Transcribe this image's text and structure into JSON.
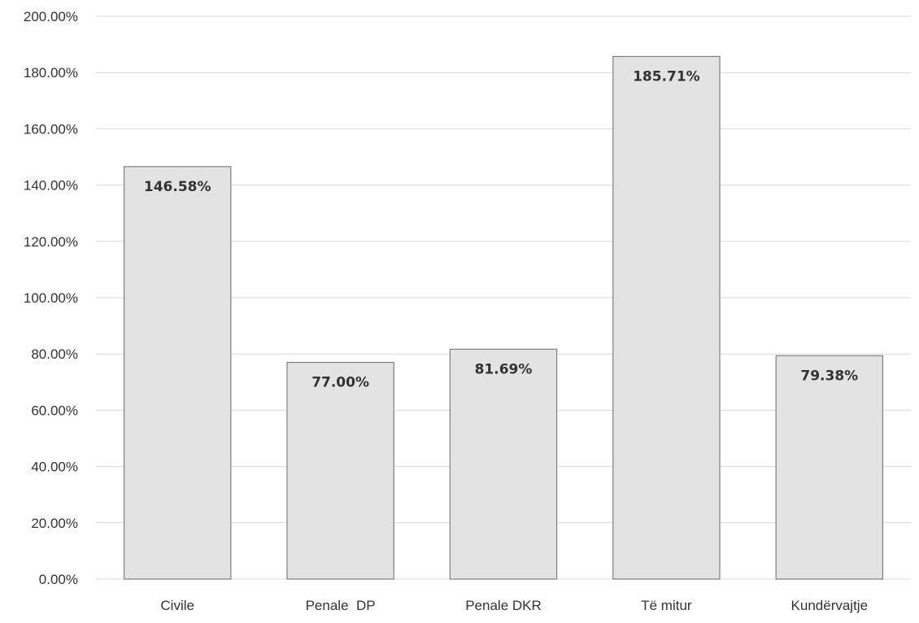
{
  "chart_data": {
    "type": "bar",
    "categories": [
      "Civile",
      "Penale  DP",
      "Penale DKR",
      "Të mitur",
      "Kundërvajtje"
    ],
    "values": [
      146.58,
      77.0,
      81.69,
      185.71,
      79.38
    ],
    "data_labels": [
      "146.58%",
      "77.00%",
      "81.69%",
      "185.71%",
      "79.38%"
    ],
    "y_ticks": [
      "0.00%",
      "20.00%",
      "40.00%",
      "60.00%",
      "80.00%",
      "100.00%",
      "120.00%",
      "140.00%",
      "160.00%",
      "180.00%",
      "200.00%"
    ],
    "ylim": [
      0,
      200
    ],
    "grid": true,
    "legend": "none",
    "colors": {
      "bar_fill": "#e3e3e3",
      "bar_stroke": "#7f7f7f",
      "grid": "#d9d9d9",
      "text": "#333333"
    }
  }
}
